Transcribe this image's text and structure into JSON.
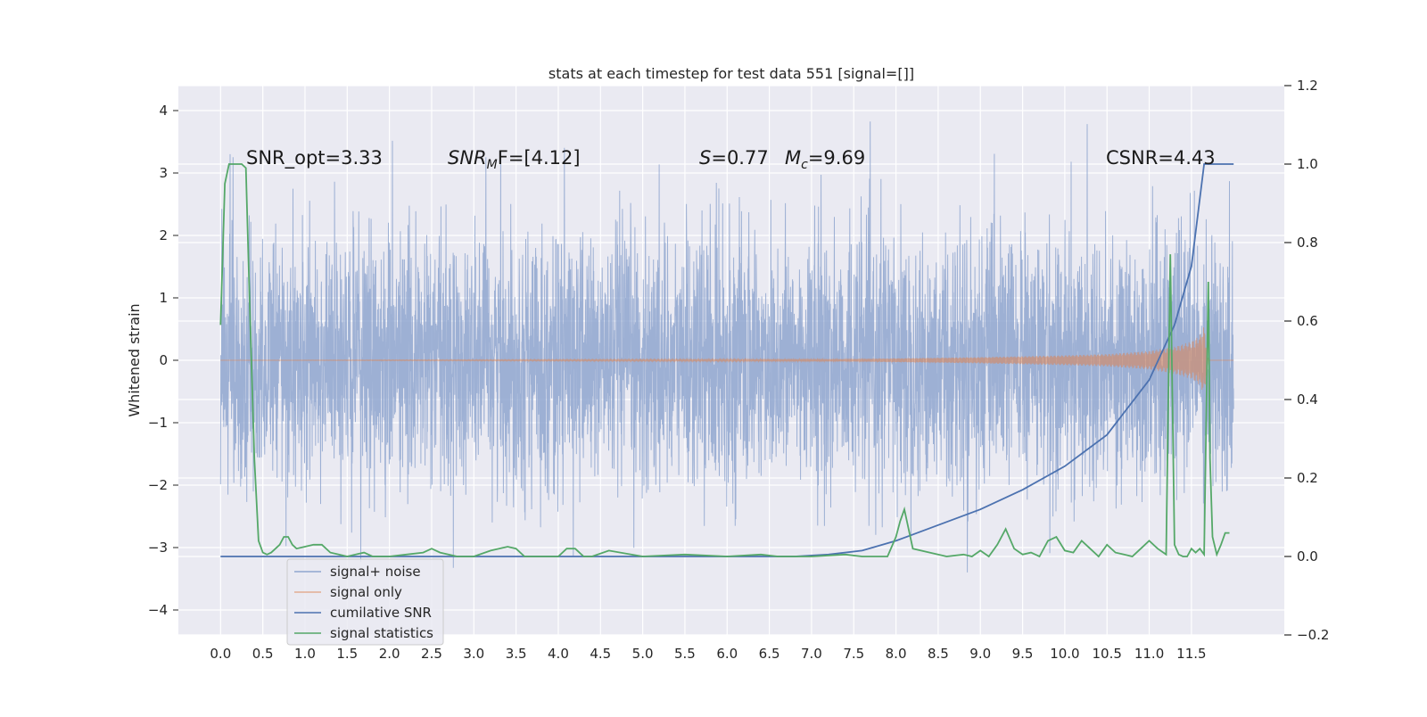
{
  "chart_data": {
    "type": "line",
    "title": "stats at each timestep for test data 551 [signal=[]]",
    "ylabel": "Whitened strain",
    "xlabel": "",
    "xlim": [
      -0.5,
      12.6
    ],
    "ylim": [
      -4.4,
      4.4
    ],
    "ylim_right": [
      -0.2,
      1.2
    ],
    "x_ticks": [
      "0.0",
      "0.5",
      "1.0",
      "1.5",
      "2.0",
      "2.5",
      "3.0",
      "3.5",
      "4.0",
      "4.5",
      "5.0",
      "5.5",
      "6.0",
      "6.5",
      "7.0",
      "7.5",
      "8.0",
      "8.5",
      "9.0",
      "9.5",
      "10.0",
      "10.5",
      "11.0",
      "11.5"
    ],
    "y_ticks": [
      "4",
      "3",
      "2",
      "1",
      "0",
      "−1",
      "−2",
      "−3",
      "−4"
    ],
    "y_ticks_right": [
      "1.2",
      "1.0",
      "0.8",
      "0.6",
      "0.4",
      "0.2",
      "0.0",
      "−0.2"
    ],
    "grid": true,
    "legend_placement": "lower-left",
    "annotations": {
      "snr_opt": "SNR_opt=3.33",
      "snr_mf_main": "SNR",
      "snr_mf_sub": "M",
      "snr_mf_rest": "F=[4.12]",
      "s_italic": "S",
      "s_value": "=0.77",
      "mc_italic": "M",
      "mc_sub": "c",
      "mc_value": "=9.69",
      "csnr": "CSNR=4.43"
    },
    "series": [
      {
        "name": "signal+ noise",
        "axis": "left",
        "color": "#8fa6cf",
        "noise_sigma": 1.0,
        "x_range": [
          0.0,
          12.0
        ]
      },
      {
        "name": "signal only",
        "axis": "left",
        "color": "#dd8452",
        "x": [
          0.0,
          7.5,
          9.0,
          10.0,
          10.5,
          11.0,
          11.3,
          11.5,
          11.6,
          11.65,
          11.7,
          12.0
        ],
        "amplitude": [
          0.0,
          0.02,
          0.05,
          0.08,
          0.1,
          0.15,
          0.22,
          0.3,
          0.4,
          0.55,
          0.0,
          0.0
        ]
      },
      {
        "name": "cumilative SNR",
        "axis": "right",
        "color": "#4c72b0",
        "x": [
          0.0,
          6.8,
          7.2,
          7.6,
          8.0,
          8.5,
          9.0,
          9.5,
          10.0,
          10.5,
          11.0,
          11.3,
          11.5,
          11.65,
          12.0
        ],
        "y": [
          0.0,
          0.0,
          0.005,
          0.015,
          0.04,
          0.08,
          0.12,
          0.17,
          0.23,
          0.31,
          0.45,
          0.59,
          0.74,
          1.0,
          1.0
        ]
      },
      {
        "name": "signal statistics",
        "axis": "right",
        "color": "#55a868",
        "x": [
          0.0,
          0.05,
          0.1,
          0.15,
          0.2,
          0.25,
          0.3,
          0.35,
          0.4,
          0.45,
          0.5,
          0.55,
          0.6,
          0.65,
          0.7,
          0.75,
          0.8,
          0.85,
          0.9,
          1.0,
          1.1,
          1.2,
          1.3,
          1.4,
          1.5,
          1.6,
          1.7,
          1.8,
          1.9,
          2.0,
          2.2,
          2.4,
          2.5,
          2.6,
          2.8,
          3.0,
          3.2,
          3.4,
          3.5,
          3.6,
          3.8,
          4.0,
          4.1,
          4.2,
          4.3,
          4.4,
          4.6,
          5.0,
          5.5,
          6.0,
          6.4,
          6.6,
          7.0,
          7.4,
          7.6,
          7.9,
          8.0,
          8.05,
          8.1,
          8.2,
          8.4,
          8.6,
          8.8,
          8.9,
          9.0,
          9.1,
          9.2,
          9.3,
          9.4,
          9.5,
          9.6,
          9.7,
          9.8,
          9.9,
          10.0,
          10.1,
          10.2,
          10.3,
          10.4,
          10.5,
          10.6,
          10.7,
          10.8,
          10.9,
          11.0,
          11.1,
          11.2,
          11.25,
          11.3,
          11.35,
          11.4,
          11.45,
          11.5,
          11.55,
          11.6,
          11.65,
          11.7,
          11.72,
          11.75,
          11.8,
          11.85,
          11.9,
          11.95
        ],
        "y": [
          0.59,
          0.95,
          1.0,
          1.0,
          1.0,
          1.0,
          0.99,
          0.6,
          0.25,
          0.04,
          0.01,
          0.005,
          0.01,
          0.02,
          0.03,
          0.05,
          0.05,
          0.03,
          0.02,
          0.025,
          0.03,
          0.03,
          0.01,
          0.005,
          0.0,
          0.005,
          0.01,
          0.0,
          0.0,
          0.0,
          0.005,
          0.01,
          0.02,
          0.01,
          0.0,
          0.0,
          0.015,
          0.025,
          0.02,
          0.0,
          0.0,
          0.0,
          0.02,
          0.02,
          0.0,
          0.0,
          0.015,
          0.0,
          0.005,
          0.0,
          0.005,
          0.0,
          0.0,
          0.005,
          0.0,
          0.0,
          0.05,
          0.09,
          0.12,
          0.02,
          0.01,
          0.0,
          0.005,
          0.0,
          0.015,
          0.0,
          0.03,
          0.07,
          0.02,
          0.005,
          0.01,
          0.0,
          0.04,
          0.05,
          0.015,
          0.01,
          0.04,
          0.02,
          0.0,
          0.03,
          0.01,
          0.005,
          0.0,
          0.02,
          0.04,
          0.02,
          0.005,
          0.77,
          0.03,
          0.005,
          0.0,
          0.0,
          0.02,
          0.01,
          0.02,
          0.005,
          0.7,
          0.25,
          0.05,
          0.005,
          0.03,
          0.06,
          0.06
        ]
      }
    ]
  }
}
